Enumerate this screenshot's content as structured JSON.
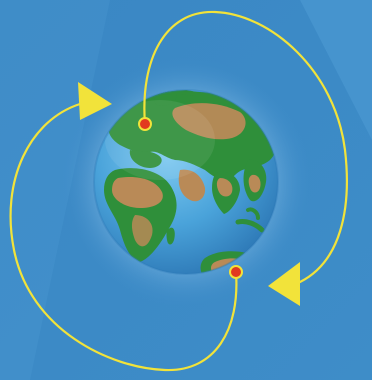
{
  "scene": {
    "subject": "globe-with-route-arrows",
    "colors": {
      "background": "#3f8fcb",
      "background_streak": "#5aa6dc",
      "ocean": "#49a6dd",
      "ocean_edge": "#2b78b7",
      "glow": "#bfe4ff",
      "land_green": "#2f8f3a",
      "land_desert": "#b98a57",
      "route_line": "#f2e33a",
      "arrow_head": "#f2e33a",
      "location_marker": "#e23a1f"
    },
    "icons": {
      "globe": "earth-globe-icon",
      "marker": "location-dot-icon",
      "arrow": "triangle-arrow-icon"
    }
  }
}
